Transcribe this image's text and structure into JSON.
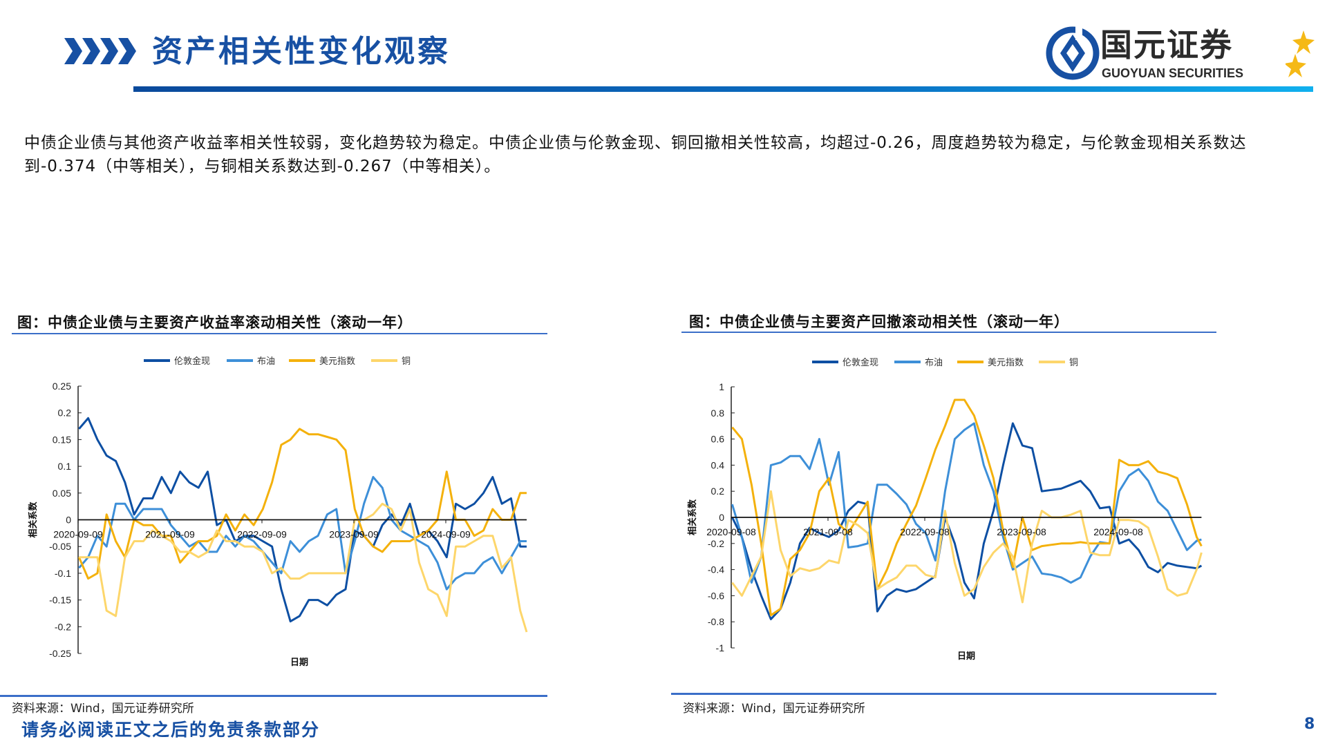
{
  "header": {
    "title": "资产相关性变化观察",
    "logo_cn": "国元证券",
    "logo_en": "GUOYUAN SECURITIES"
  },
  "summary": "中债企业债与其他资产收益率相关性较弱，变化趋势较为稳定。中债企业债与伦敦金现、铜回撤相关性较高，均超过-0.26，周度趋势较为稳定，与伦敦金现相关系数达到-0.374（中等相关），与铜相关系数达到-0.267（中等相关）。",
  "colors": {
    "brand": "#1750a3",
    "gold": "#0d4fa3",
    "oil": "#3d8fd8",
    "usd": "#f4b10c",
    "copper": "#fdd66b"
  },
  "chart_data": [
    {
      "type": "line",
      "title": "图：中债企业债与主要资产收益率滚动相关性（滚动一年）",
      "xlabel": "日期",
      "ylabel": "相关系数",
      "ylim": [
        -0.25,
        0.25
      ],
      "yticks": [
        "0.25",
        "0.2",
        "0.15",
        "0.1",
        "0.05",
        "0",
        "-0.05",
        "-0.1",
        "-0.15",
        "-0.2",
        "-0.25"
      ],
      "ytick_values": [
        0.25,
        0.2,
        0.15,
        0.1,
        0.05,
        0,
        -0.05,
        -0.1,
        -0.15,
        -0.2,
        -0.25
      ],
      "xticks": [
        "2020-09-09",
        "2021-09-09",
        "2022-09-09",
        "2023-09-09",
        "2024-09-09"
      ],
      "xtick_values": [
        2020.69,
        2021.69,
        2022.69,
        2023.69,
        2024.69
      ],
      "xlim": [
        2020.69,
        2025.57
      ],
      "legend_position": "top-center",
      "x_start": 2020.7,
      "x_step": 0.1,
      "series": [
        {
          "name": "伦敦金现",
          "color": "#0d4fa3",
          "values": [
            0.17,
            0.19,
            0.15,
            0.12,
            0.11,
            0.07,
            0.01,
            0.04,
            0.04,
            0.08,
            0.05,
            0.09,
            0.07,
            0.06,
            0.09,
            -0.01,
            0.0,
            -0.04,
            -0.03,
            -0.03,
            -0.04,
            -0.05,
            -0.13,
            -0.19,
            -0.18,
            -0.15,
            -0.15,
            -0.16,
            -0.14,
            -0.13,
            -0.02,
            -0.03,
            -0.05,
            -0.01,
            0.01,
            -0.01,
            0.03,
            -0.03,
            -0.02,
            -0.04,
            -0.07,
            0.03,
            0.02,
            0.03,
            0.05,
            0.08,
            0.03,
            0.04,
            -0.05,
            -0.05
          ]
        },
        {
          "name": "布油",
          "color": "#3d8fd8",
          "values": [
            -0.09,
            -0.07,
            -0.03,
            -0.05,
            0.03,
            0.03,
            0.0,
            0.02,
            0.02,
            0.02,
            -0.01,
            -0.03,
            -0.05,
            -0.04,
            -0.06,
            -0.06,
            -0.03,
            -0.05,
            -0.03,
            -0.04,
            -0.06,
            -0.08,
            -0.1,
            -0.04,
            -0.06,
            -0.04,
            -0.03,
            0.01,
            0.02,
            -0.1,
            -0.04,
            0.03,
            0.08,
            0.06,
            0.0,
            -0.02,
            -0.03,
            -0.04,
            -0.05,
            -0.08,
            -0.13,
            -0.11,
            -0.1,
            -0.1,
            -0.08,
            -0.07,
            -0.1,
            -0.07,
            -0.04,
            -0.04
          ]
        },
        {
          "name": "美元指数",
          "color": "#f4b10c",
          "values": [
            -0.07,
            -0.11,
            -0.1,
            0.01,
            -0.04,
            -0.07,
            0.0,
            -0.01,
            -0.01,
            -0.03,
            -0.03,
            -0.08,
            -0.06,
            -0.04,
            -0.04,
            -0.03,
            0.01,
            -0.02,
            0.01,
            -0.01,
            0.02,
            0.07,
            0.14,
            0.15,
            0.17,
            0.16,
            0.16,
            0.155,
            0.15,
            0.13,
            0.02,
            -0.03,
            -0.05,
            -0.06,
            -0.04,
            -0.04,
            -0.04,
            -0.03,
            -0.02,
            0.0,
            0.09,
            0.0,
            0.0,
            -0.03,
            -0.02,
            0.02,
            0.0,
            0.0,
            0.05,
            0.05
          ]
        },
        {
          "name": "铜",
          "color": "#fdd66b",
          "values": [
            -0.07,
            -0.07,
            -0.07,
            -0.17,
            -0.18,
            -0.07,
            -0.04,
            -0.04,
            -0.02,
            -0.03,
            -0.04,
            -0.06,
            -0.06,
            -0.07,
            -0.06,
            -0.02,
            -0.04,
            -0.04,
            -0.05,
            -0.05,
            -0.06,
            -0.1,
            -0.09,
            -0.11,
            -0.11,
            -0.1,
            -0.1,
            -0.1,
            -0.1,
            -0.1,
            0.0,
            0.0,
            0.01,
            0.03,
            0.02,
            -0.02,
            0.02,
            -0.08,
            -0.13,
            -0.14,
            -0.18,
            -0.05,
            -0.05,
            -0.04,
            -0.03,
            -0.03,
            -0.09,
            -0.07,
            -0.17,
            -0.21
          ]
        }
      ],
      "source": "资料来源：Wind，国元证券研究所"
    },
    {
      "type": "line",
      "title": "图：中债企业债与主要资产回撤滚动相关性（滚动一年）",
      "xlabel": "日期",
      "ylabel": "相关系数",
      "ylim": [
        -1,
        1
      ],
      "yticks": [
        "1",
        "0.8",
        "0.6",
        "0.4",
        "0.2",
        "0",
        "-0.2",
        "-0.4",
        "-0.6",
        "-0.8",
        "-1"
      ],
      "ytick_values": [
        1,
        0.8,
        0.6,
        0.4,
        0.2,
        0,
        -0.2,
        -0.4,
        -0.6,
        -0.8,
        -1
      ],
      "xticks": [
        "2020-09-08",
        "2021-09-08",
        "2022-09-08",
        "2023-09-08",
        "2024-09-08"
      ],
      "xtick_values": [
        2020.69,
        2021.69,
        2022.69,
        2023.69,
        2024.69
      ],
      "xlim": [
        2020.69,
        2025.55
      ],
      "legend_position": "top-center",
      "x_start": 2020.7,
      "x_step": 0.1,
      "series": [
        {
          "name": "伦敦金现",
          "color": "#0d4fa3",
          "values": [
            0.0,
            -0.15,
            -0.4,
            -0.6,
            -0.78,
            -0.7,
            -0.5,
            -0.2,
            -0.08,
            -0.12,
            -0.15,
            -0.1,
            0.05,
            0.12,
            0.1,
            -0.72,
            -0.6,
            -0.55,
            -0.57,
            -0.55,
            -0.5,
            -0.45,
            0.0,
            -0.2,
            -0.5,
            -0.62,
            -0.2,
            0.05,
            0.4,
            0.72,
            0.55,
            0.53,
            0.2,
            0.21,
            0.22,
            0.25,
            0.28,
            0.2,
            0.07,
            0.08,
            -0.2,
            -0.17,
            -0.25,
            -0.38,
            -0.42,
            -0.35,
            -0.37,
            -0.38,
            -0.39,
            -0.37
          ]
        },
        {
          "name": "布油",
          "color": "#3d8fd8",
          "values": [
            0.1,
            -0.15,
            -0.5,
            -0.3,
            0.4,
            0.42,
            0.47,
            0.47,
            0.37,
            0.6,
            0.25,
            0.5,
            -0.23,
            -0.22,
            -0.2,
            0.25,
            0.25,
            0.18,
            0.1,
            -0.05,
            -0.12,
            -0.33,
            0.2,
            0.6,
            0.67,
            0.72,
            0.4,
            0.2,
            -0.15,
            -0.4,
            -0.35,
            -0.3,
            -0.43,
            -0.44,
            -0.46,
            -0.5,
            -0.46,
            -0.3,
            -0.19,
            -0.2,
            0.2,
            0.32,
            0.37,
            0.28,
            0.12,
            0.05,
            -0.1,
            -0.25,
            -0.18,
            -0.17
          ]
        },
        {
          "name": "美元指数",
          "color": "#f4b10c",
          "values": [
            0.69,
            0.6,
            0.25,
            -0.2,
            -0.75,
            -0.7,
            -0.32,
            -0.25,
            -0.12,
            0.2,
            0.3,
            -0.05,
            -0.12,
            0.0,
            0.12,
            -0.55,
            -0.4,
            -0.2,
            -0.05,
            0.09,
            0.3,
            0.52,
            0.7,
            0.9,
            0.9,
            0.78,
            0.55,
            0.3,
            -0.1,
            -0.38,
            0.0,
            -0.25,
            -0.22,
            -0.21,
            -0.2,
            -0.2,
            -0.19,
            -0.2,
            -0.2,
            -0.2,
            0.44,
            0.4,
            0.4,
            0.43,
            0.35,
            0.33,
            0.3,
            0.1,
            -0.15,
            -0.22
          ]
        },
        {
          "name": "铜",
          "color": "#fdd66b",
          "values": [
            -0.5,
            -0.6,
            -0.45,
            -0.3,
            0.2,
            -0.25,
            -0.45,
            -0.39,
            -0.41,
            -0.39,
            -0.33,
            -0.35,
            -0.02,
            -0.06,
            -0.12,
            -0.55,
            -0.5,
            -0.46,
            -0.37,
            -0.37,
            -0.44,
            -0.46,
            0.05,
            -0.35,
            -0.6,
            -0.55,
            -0.38,
            -0.27,
            -0.2,
            -0.3,
            -0.65,
            -0.2,
            0.05,
            0.0,
            0.0,
            0.02,
            0.05,
            -0.27,
            -0.29,
            -0.29,
            -0.02,
            -0.02,
            -0.03,
            -0.08,
            -0.3,
            -0.55,
            -0.6,
            -0.58,
            -0.4,
            -0.27
          ]
        }
      ],
      "source": "资料来源：Wind，国元证券研究所"
    }
  ],
  "footer": {
    "disclaimer": "请务必阅读正文之后的免责条款部分",
    "page_number": "8"
  }
}
